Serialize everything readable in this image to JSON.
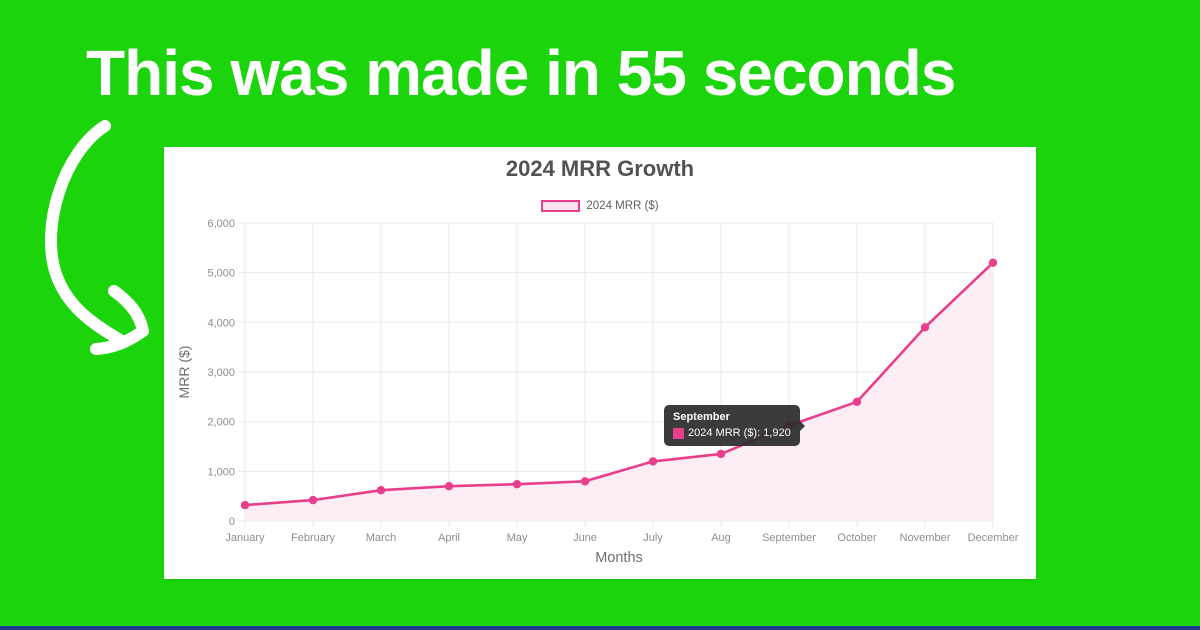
{
  "page": {
    "headline": "This was made in 55 seconds",
    "background_color": "#1bd40b",
    "headline_color": "#ffffff",
    "bottom_bar_color": "#1e3a8a",
    "arrow_color": "#ffffff"
  },
  "chart_data": {
    "type": "area",
    "title": "2024 MRR Growth",
    "xlabel": "Months",
    "ylabel": "MRR ($)",
    "legend_entries": [
      "2024 MRR ($)"
    ],
    "legend_position": "top",
    "grid": true,
    "categories": [
      "January",
      "February",
      "March",
      "April",
      "May",
      "June",
      "July",
      "Aug",
      "September",
      "October",
      "November",
      "December"
    ],
    "series": [
      {
        "name": "2024 MRR ($)",
        "values": [
          320,
          420,
          620,
          700,
          740,
          800,
          1200,
          1350,
          1920,
          2400,
          3900,
          5200
        ]
      }
    ],
    "ylim": [
      0,
      6000
    ],
    "ytick_values": [
      0,
      1000,
      2000,
      3000,
      4000,
      5000,
      6000
    ],
    "ytick_labels": [
      "0",
      "1,000",
      "2,000",
      "3,000",
      "4,000",
      "5,000",
      "6,000"
    ],
    "line_color": "#e83e8c",
    "fill_color": "#fcedf5",
    "grid_color": "#e9e9e9",
    "tick_text_color": "#8d8d8d",
    "axis_title_color": "#6e6e6e"
  },
  "tooltip": {
    "month": "September",
    "value_label": "2024 MRR ($): 1,920"
  }
}
